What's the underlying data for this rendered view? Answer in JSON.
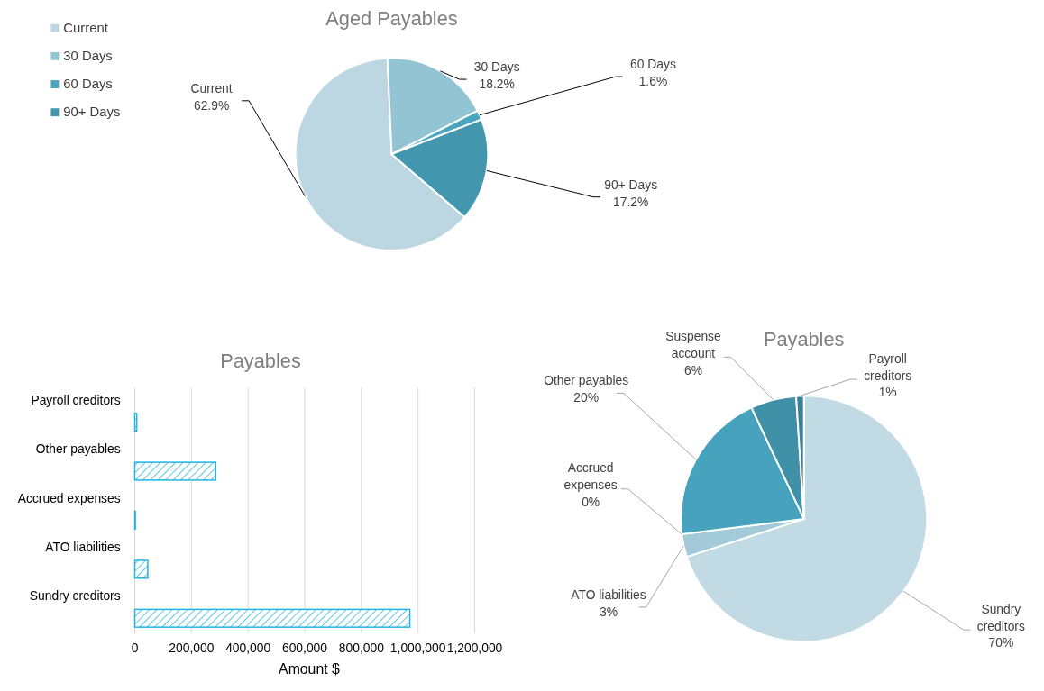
{
  "chart_data": [
    {
      "type": "pie",
      "title": "Aged Payables",
      "categories": [
        "Current",
        "30 Days",
        "60 Days",
        "90+ Days"
      ],
      "values": [
        62.9,
        18.2,
        1.6,
        17.2
      ],
      "value_labels": [
        "62.9%",
        "18.2%",
        "1.6%",
        "17.2%"
      ],
      "colors": [
        "#bcd7e2",
        "#93c4d4",
        "#4aa6bf",
        "#4297ae"
      ],
      "legend": "top left"
    },
    {
      "type": "bar",
      "orientation": "horizontal",
      "title": "Payables",
      "xlabel": "Amount $",
      "categories": [
        "Payroll creditors",
        "Other payables",
        "Accrued expenses",
        "ATO liabilities",
        "Sundry creditors"
      ],
      "values": [
        7000,
        286000,
        2000,
        46000,
        971000
      ],
      "color": "#1fb4e6",
      "xlim": [
        0,
        1200000
      ],
      "xticks": [
        0,
        {
          "value": 200000,
          "label": "200,000"
        },
        {
          "value": 400000,
          "label": "400,000"
        },
        {
          "value": 600000,
          "label": "600,000"
        },
        {
          "value": 800000,
          "label": "800,000"
        },
        {
          "value": 1000000,
          "label": "1,000,000"
        },
        {
          "value": 1200000,
          "label": "1,200,000"
        }
      ],
      "grid": "x"
    },
    {
      "type": "pie",
      "title": "Payables",
      "categories": [
        "Sundry creditors",
        "ATO liabilities",
        "Accrued expenses",
        "Other payables",
        "Suspense account",
        "Payroll creditors"
      ],
      "values": [
        70,
        3,
        0,
        20,
        6,
        1
      ],
      "value_labels": [
        "70%",
        "3%",
        "0%",
        "20%",
        "6%",
        "1%"
      ],
      "colors": [
        "#c2dae3",
        "#a3cad8",
        "#8fc0d0",
        "#47a3bd",
        "#4090a8",
        "#3a7f96"
      ]
    }
  ]
}
